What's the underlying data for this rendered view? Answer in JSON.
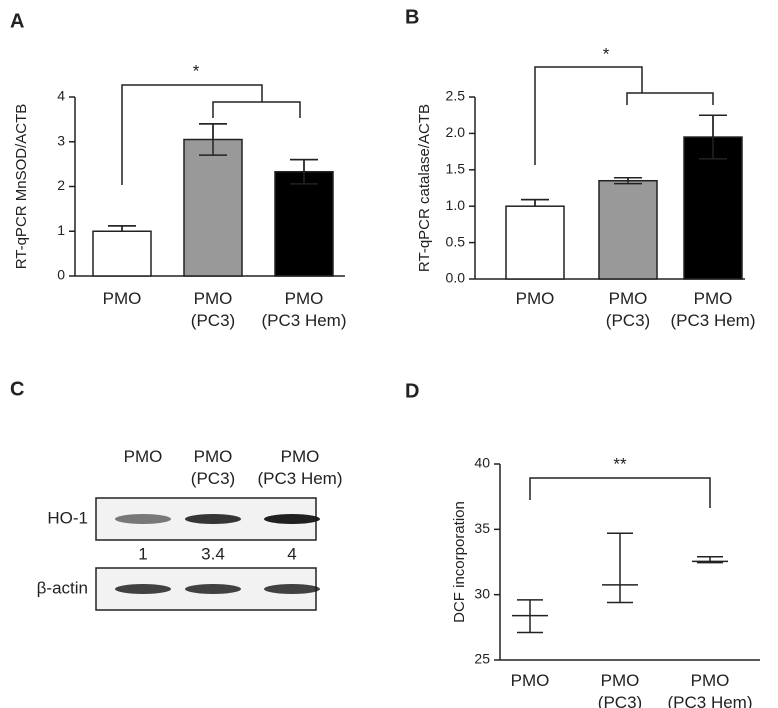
{
  "chart_data": [
    {
      "panel": "A",
      "type": "bar",
      "ylabel": "RT-qPCR MnSOD/ACTB",
      "categories": [
        [
          "PMO"
        ],
        [
          "PMO",
          "(PC3)"
        ],
        [
          "PMO",
          "(PC3 Hem)"
        ]
      ],
      "values": [
        1.0,
        3.05,
        2.33
      ],
      "errors": [
        0.12,
        0.35,
        0.27
      ],
      "colors": [
        "#ffffff",
        "#999999",
        "#000000"
      ],
      "ylim": [
        0,
        4
      ],
      "yticks": [
        0,
        1,
        2,
        3,
        4
      ],
      "annotation": "*"
    },
    {
      "panel": "B",
      "type": "bar",
      "ylabel": "RT-qPCR catalase/ACTB",
      "categories": [
        [
          "PMO"
        ],
        [
          "PMO",
          "(PC3)"
        ],
        [
          "PMO",
          "(PC3 Hem)"
        ]
      ],
      "values": [
        1.0,
        1.35,
        1.95
      ],
      "errors": [
        0.09,
        0.04,
        0.3
      ],
      "colors": [
        "#ffffff",
        "#999999",
        "#000000"
      ],
      "ylim": [
        0,
        2.5
      ],
      "yticks": [
        {
          "value": 0,
          "label": "0.0"
        },
        0.5,
        {
          "value": 1,
          "label": "1.0"
        },
        1.5,
        {
          "value": 2,
          "label": "2.0"
        },
        2.5
      ],
      "annotation": "*"
    },
    {
      "panel": "C",
      "type": "blot",
      "categories": [
        [
          "PMO"
        ],
        [
          "PMO",
          "(PC3)"
        ],
        [
          "PMO",
          "(PC3 Hem)"
        ]
      ],
      "rows": [
        "HO-1",
        "β-actin"
      ],
      "values": [
        1,
        3.4,
        4
      ]
    },
    {
      "panel": "D",
      "type": "errorbar",
      "ylabel": "DCF incorporation",
      "categories": [
        [
          "PMO"
        ],
        [
          "PMO",
          "(PC3)"
        ],
        [
          "PMO",
          "(PC3 Hem)"
        ]
      ],
      "values": [
        28.4,
        30.75,
        32.55
      ],
      "errors_low": [
        1.3,
        1.35,
        0.1
      ],
      "errors_high": [
        1.2,
        3.95,
        0.35
      ],
      "ylim": [
        25,
        40
      ],
      "yticks": [
        25,
        30,
        35,
        40
      ],
      "annotation": "**"
    }
  ]
}
